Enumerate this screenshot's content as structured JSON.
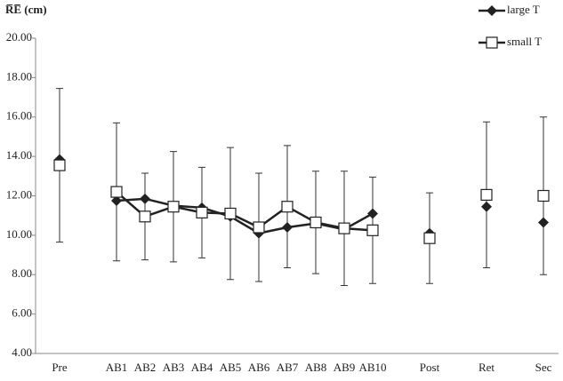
{
  "chart_data": {
    "type": "line",
    "y_label": "R̅E̅ (cm)",
    "categories": [
      "Pre",
      null,
      "AB1",
      "AB2",
      "AB3",
      "AB4",
      "AB5",
      "AB6",
      "AB7",
      "AB8",
      "AB9",
      "AB10",
      null,
      "Post",
      null,
      "Ret",
      null,
      "Sec"
    ],
    "series": [
      {
        "name": "large T",
        "color": "#222222",
        "marker": "diamond",
        "values": [
          13.85,
          null,
          11.75,
          11.85,
          11.5,
          11.4,
          10.95,
          10.1,
          10.4,
          10.6,
          10.3,
          11.1,
          null,
          10.1,
          null,
          11.45,
          null,
          10.65
        ]
      },
      {
        "name": "small T",
        "color": "#222222",
        "marker": "square",
        "values": [
          13.55,
          null,
          12.2,
          10.95,
          11.45,
          11.15,
          11.1,
          10.4,
          11.45,
          10.65,
          10.35,
          10.25,
          null,
          9.85,
          null,
          12.05,
          null,
          12.0
        ],
        "errors": [
          3.9,
          null,
          3.5,
          2.2,
          2.8,
          2.3,
          3.35,
          2.75,
          3.1,
          2.6,
          2.9,
          2.7,
          null,
          2.3,
          null,
          3.7,
          null,
          4.0
        ]
      }
    ],
    "ylim": [
      4,
      20
    ],
    "yticks": [
      {
        "value": 4,
        "label": "4.00"
      },
      {
        "value": 6,
        "label": "6.00"
      },
      {
        "value": 8,
        "label": "8.00"
      },
      {
        "value": 10,
        "label": "10.00"
      },
      {
        "value": 12,
        "label": "12.00"
      },
      {
        "value": 14,
        "label": "14.00"
      },
      {
        "value": 16,
        "label": "16.00"
      },
      {
        "value": 18,
        "label": "18.00"
      },
      {
        "value": 20,
        "label": "20.00"
      }
    ],
    "grid": false
  }
}
